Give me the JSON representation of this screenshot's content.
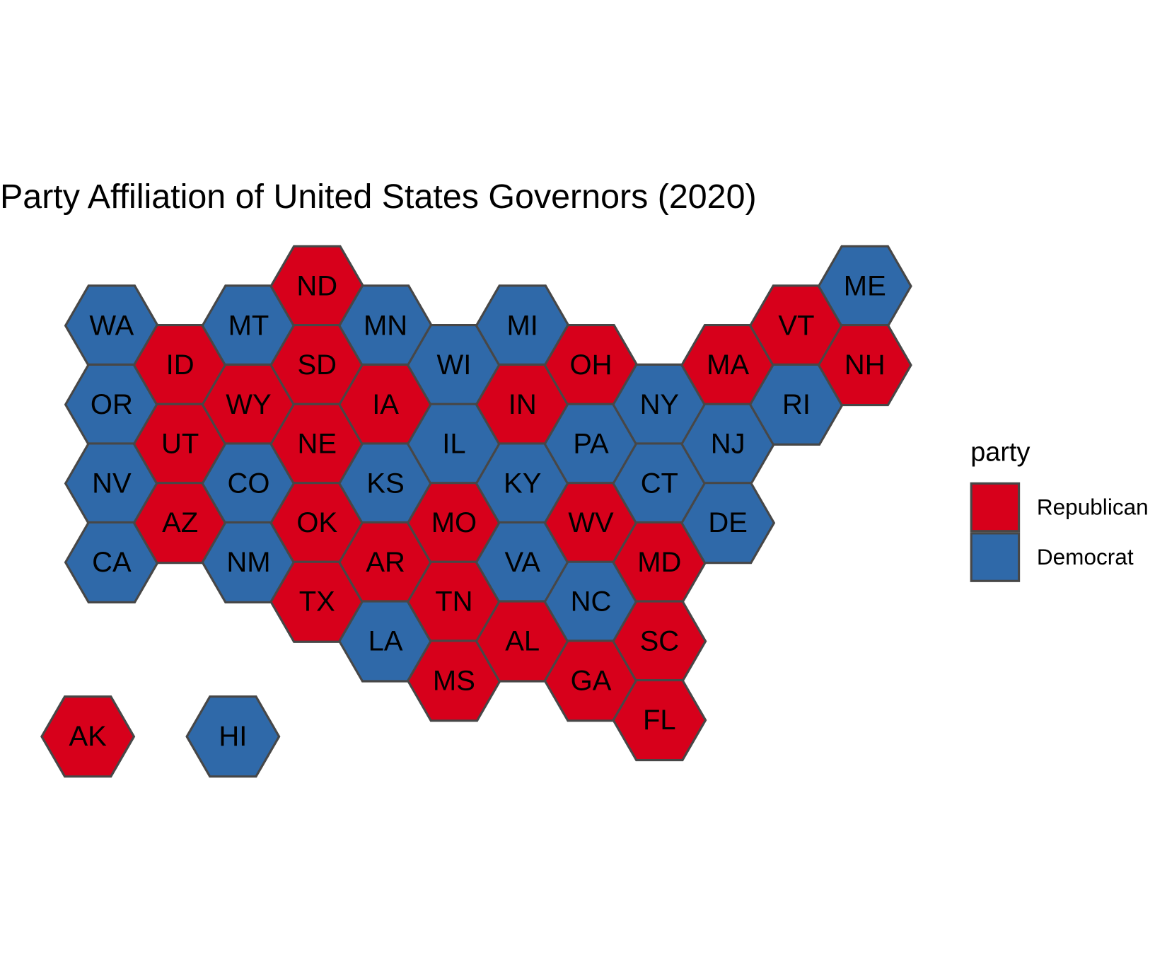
{
  "title": "Party Affiliation of United States Governors (2020)",
  "legend": {
    "title": "party",
    "entries": [
      {
        "label": "Republican",
        "color": "#d7001b"
      },
      {
        "label": "Democrat",
        "color": "#2f69a9"
      }
    ]
  },
  "states": [
    {
      "label": "WA",
      "party": "Democrat"
    },
    {
      "label": "OR",
      "party": "Democrat"
    },
    {
      "label": "NV",
      "party": "Democrat"
    },
    {
      "label": "CA",
      "party": "Democrat"
    },
    {
      "label": "ID",
      "party": "Republican"
    },
    {
      "label": "UT",
      "party": "Republican"
    },
    {
      "label": "AZ",
      "party": "Republican"
    },
    {
      "label": "MT",
      "party": "Democrat"
    },
    {
      "label": "WY",
      "party": "Republican"
    },
    {
      "label": "CO",
      "party": "Democrat"
    },
    {
      "label": "NM",
      "party": "Democrat"
    },
    {
      "label": "ND",
      "party": "Republican"
    },
    {
      "label": "SD",
      "party": "Republican"
    },
    {
      "label": "NE",
      "party": "Republican"
    },
    {
      "label": "OK",
      "party": "Republican"
    },
    {
      "label": "TX",
      "party": "Republican"
    },
    {
      "label": "MN",
      "party": "Democrat"
    },
    {
      "label": "IA",
      "party": "Republican"
    },
    {
      "label": "KS",
      "party": "Democrat"
    },
    {
      "label": "AR",
      "party": "Republican"
    },
    {
      "label": "LA",
      "party": "Democrat"
    },
    {
      "label": "WI",
      "party": "Democrat"
    },
    {
      "label": "IL",
      "party": "Democrat"
    },
    {
      "label": "MO",
      "party": "Republican"
    },
    {
      "label": "TN",
      "party": "Republican"
    },
    {
      "label": "MS",
      "party": "Republican"
    },
    {
      "label": "MI",
      "party": "Democrat"
    },
    {
      "label": "IN",
      "party": "Republican"
    },
    {
      "label": "KY",
      "party": "Democrat"
    },
    {
      "label": "VA",
      "party": "Democrat"
    },
    {
      "label": "AL",
      "party": "Republican"
    },
    {
      "label": "OH",
      "party": "Republican"
    },
    {
      "label": "PA",
      "party": "Democrat"
    },
    {
      "label": "WV",
      "party": "Republican"
    },
    {
      "label": "NC",
      "party": "Democrat"
    },
    {
      "label": "GA",
      "party": "Republican"
    },
    {
      "label": "NY",
      "party": "Democrat"
    },
    {
      "label": "CT",
      "party": "Democrat"
    },
    {
      "label": "MD",
      "party": "Republican"
    },
    {
      "label": "SC",
      "party": "Republican"
    },
    {
      "label": "FL",
      "party": "Republican"
    },
    {
      "label": "MA",
      "party": "Republican"
    },
    {
      "label": "NJ",
      "party": "Democrat"
    },
    {
      "label": "DE",
      "party": "Democrat"
    },
    {
      "label": "VT",
      "party": "Republican"
    },
    {
      "label": "RI",
      "party": "Democrat"
    },
    {
      "label": "ME",
      "party": "Democrat"
    },
    {
      "label": "NH",
      "party": "Republican"
    },
    {
      "label": "AK",
      "party": "Republican"
    },
    {
      "label": "HI",
      "party": "Democrat"
    }
  ]
}
